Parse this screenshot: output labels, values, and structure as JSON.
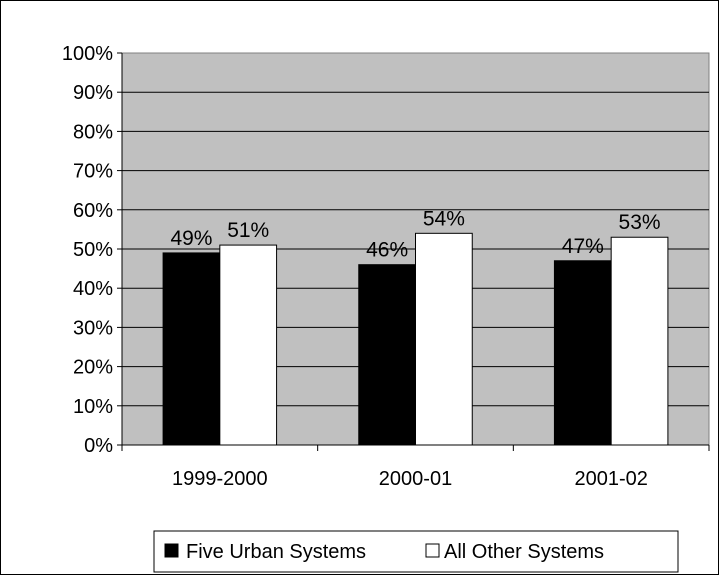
{
  "chart_data": {
    "type": "bar",
    "categories": [
      "1999-2000",
      "2000-01",
      "2001-02"
    ],
    "series": [
      {
        "name": "Five Urban Systems",
        "values": [
          49,
          46,
          47
        ],
        "labels": [
          "49%",
          "46%",
          "47%"
        ],
        "color": "#000000"
      },
      {
        "name": "All Other Systems",
        "values": [
          51,
          54,
          53
        ],
        "labels": [
          "51%",
          "54%",
          "53%"
        ],
        "color": "#ffffff"
      }
    ],
    "ylim": [
      0,
      100
    ],
    "y_ticks": [
      "0%",
      "10%",
      "20%",
      "30%",
      "40%",
      "50%",
      "60%",
      "70%",
      "80%",
      "90%",
      "100%"
    ],
    "title": "",
    "xlabel": "",
    "ylabel": "",
    "grid": true,
    "plot_background": "#c0c0c0",
    "legend_position": "bottom"
  }
}
